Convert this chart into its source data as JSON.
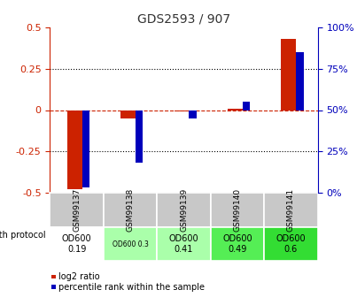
{
  "title": "GDS2593 / 907",
  "samples": [
    "GSM99137",
    "GSM99138",
    "GSM99139",
    "GSM99140",
    "GSM99141"
  ],
  "log2_ratio": [
    -0.48,
    -0.05,
    -0.01,
    0.01,
    0.43
  ],
  "percentile_rank": [
    3,
    18,
    45,
    55,
    85
  ],
  "ylim_left": [
    -0.5,
    0.5
  ],
  "ylim_right": [
    0,
    100
  ],
  "yticks_left": [
    -0.5,
    -0.25,
    0.0,
    0.25,
    0.5
  ],
  "yticks_right": [
    0,
    25,
    50,
    75,
    100
  ],
  "red_color": "#cc2200",
  "blue_color": "#0000bb",
  "dashed_color": "#cc2200",
  "dotted_color": "#000000",
  "growth_protocol_label": "growth protocol",
  "od_values": [
    "OD600\n0.19",
    "OD600 0.3",
    "OD600\n0.41",
    "OD600\n0.49",
    "OD600\n0.6"
  ],
  "od_bg_colors": [
    "#ffffff",
    "#aaffaa",
    "#aaffaa",
    "#55ee55",
    "#33dd33"
  ],
  "sample_bg_color": "#c8c8c8",
  "legend_red": "log2 ratio",
  "legend_blue": "percentile rank within the sample",
  "title_color": "#333333",
  "left_axis_color": "#cc2200",
  "right_axis_color": "#0000bb",
  "red_bar_width": 0.28,
  "blue_bar_width": 0.14
}
